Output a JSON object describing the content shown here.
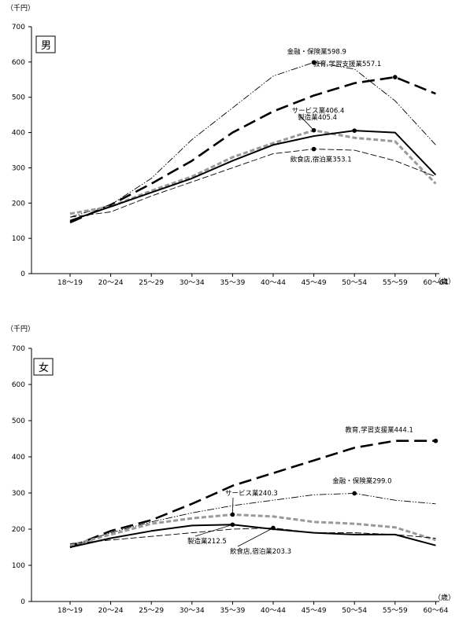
{
  "chart_data": [
    {
      "type": "line",
      "panel_label": "男",
      "y_unit": "（千円）",
      "x_unit": "（歳）",
      "ylim": [
        0,
        700
      ],
      "yticks": [
        0,
        100,
        200,
        300,
        400,
        500,
        600,
        700
      ],
      "categories": [
        "18～19",
        "20～24",
        "25～29",
        "30～34",
        "35～39",
        "40～44",
        "45～49",
        "50～54",
        "55～59",
        "60～64"
      ],
      "series": [
        {
          "key": "edu",
          "color": "#000000",
          "values": [
            145,
            195,
            255,
            320,
            400,
            460,
            505,
            540,
            557.1,
            510
          ]
        },
        {
          "key": "fin",
          "color": "#000000",
          "values": [
            160,
            195,
            270,
            380,
            470,
            560,
            598.9,
            580,
            490,
            365
          ]
        },
        {
          "key": "svc",
          "color": "#999999",
          "values": [
            170,
            190,
            235,
            275,
            330,
            370,
            406.4,
            385,
            375,
            255
          ]
        },
        {
          "key": "mfg",
          "color": "#000000",
          "values": [
            150,
            190,
            230,
            270,
            320,
            365,
            390,
            405.4,
            400,
            280
          ]
        },
        {
          "key": "food",
          "color": "#000000",
          "values": [
            160,
            175,
            220,
            260,
            300,
            340,
            353.1,
            350,
            320,
            275
          ]
        }
      ],
      "annotations": [
        {
          "text": "金融・保険業598.9",
          "series": "fin",
          "index": 6
        },
        {
          "text": "教育,学習支援業557.1",
          "series": "edu",
          "index": 8
        },
        {
          "text": "サービス業406.4",
          "series": "svc",
          "index": 6
        },
        {
          "text": "製造業405.4",
          "series": "mfg",
          "index": 7
        },
        {
          "text": "飲食店,宿泊業353.1",
          "series": "food",
          "index": 6
        }
      ]
    },
    {
      "type": "line",
      "panel_label": "女",
      "y_unit": "（千円）",
      "x_unit": "（歳）",
      "ylim": [
        0,
        700
      ],
      "yticks": [
        0,
        100,
        200,
        300,
        400,
        500,
        600,
        700
      ],
      "categories": [
        "18～19",
        "20～24",
        "25～29",
        "30～34",
        "35～39",
        "40～44",
        "45～49",
        "50～54",
        "55～59",
        "60～64"
      ],
      "series": [
        {
          "key": "edu",
          "color": "#000000",
          "values": [
            150,
            195,
            225,
            270,
            320,
            355,
            390,
            425,
            444.1,
            444.1
          ]
        },
        {
          "key": "fin",
          "color": "#000000",
          "values": [
            155,
            190,
            220,
            245,
            265,
            280,
            295,
            299.0,
            280,
            270
          ]
        },
        {
          "key": "svc",
          "color": "#999999",
          "values": [
            155,
            185,
            215,
            230,
            240.3,
            235,
            220,
            215,
            205,
            170
          ]
        },
        {
          "key": "mfg",
          "color": "#000000",
          "values": [
            150,
            175,
            195,
            210,
            212.5,
            200,
            190,
            185,
            185,
            155
          ]
        },
        {
          "key": "food",
          "color": "#000000",
          "values": [
            160,
            170,
            180,
            190,
            200,
            203.3,
            190,
            190,
            185,
            175
          ]
        }
      ],
      "annotations": [
        {
          "text": "教育,学習支援業444.1",
          "series": "edu",
          "index": 9
        },
        {
          "text": "金融・保険業299.0",
          "series": "fin",
          "index": 7
        },
        {
          "text": "サービス業240.3",
          "series": "svc",
          "index": 4
        },
        {
          "text": "製造業212.5",
          "series": "mfg",
          "index": 4
        },
        {
          "text": "飲食店,宿泊業203.3",
          "series": "food",
          "index": 5
        }
      ]
    }
  ]
}
